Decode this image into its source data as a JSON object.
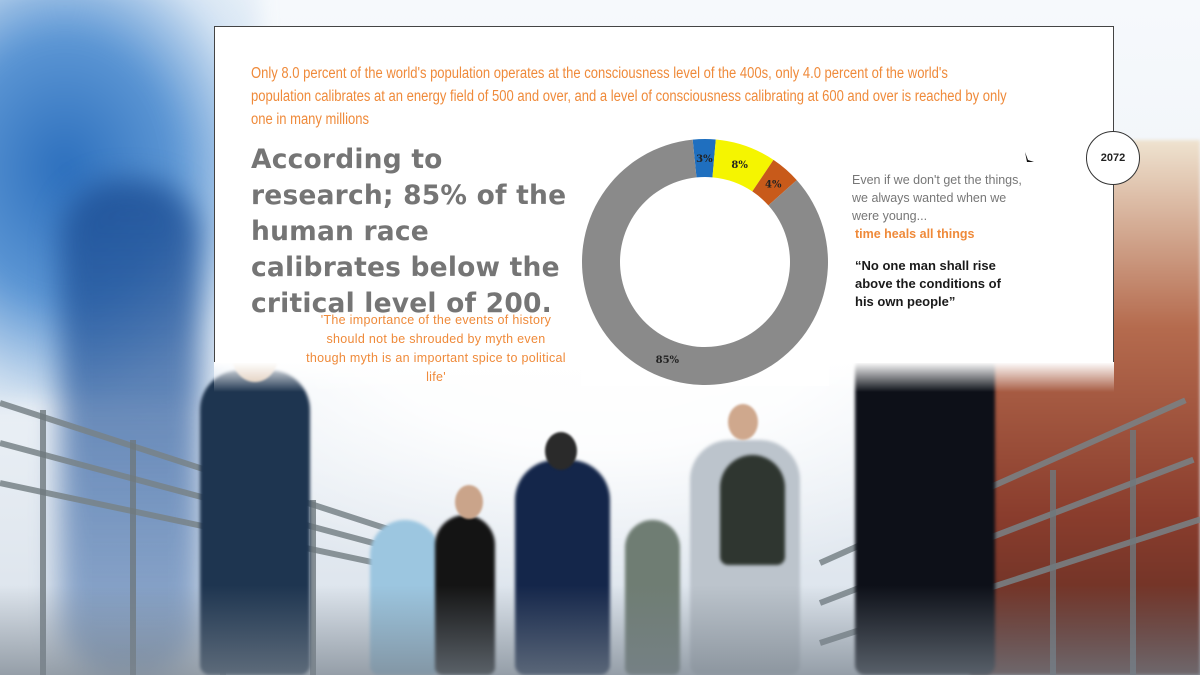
{
  "slide": {
    "intro_text": "Only 8.0 percent of the world's population operates at the consciousness level of the 400s, only 4.0 percent of the world's population calibrates at an energy field of 500 and over, and a level of consciousness calibrating at 600 and over is reached by only one in many millions",
    "headline": "According to research; 85% of the human race calibrates below the critical level of 200.",
    "quote_left": "'The importance of the events of history should not be shrouded by myth even though myth is an important spice to political life'",
    "right_text": "Even if we don't get the things, we always wanted when we were young...",
    "right_highlight": "time heals all things",
    "right_quote": "“No one man shall rise above the conditions of his own people”",
    "badge_number": "2072"
  },
  "chart_data": {
    "type": "pie",
    "style": "donut",
    "values": [
      3,
      8,
      4,
      85
    ],
    "labels": [
      "3%",
      "8%",
      "4%",
      "85%"
    ],
    "colors": [
      "#1f6fbf",
      "#f5f500",
      "#c85a1a",
      "#8a8a8a"
    ]
  },
  "colors": {
    "accent": "#ef8a3a",
    "headline": "#757575"
  }
}
